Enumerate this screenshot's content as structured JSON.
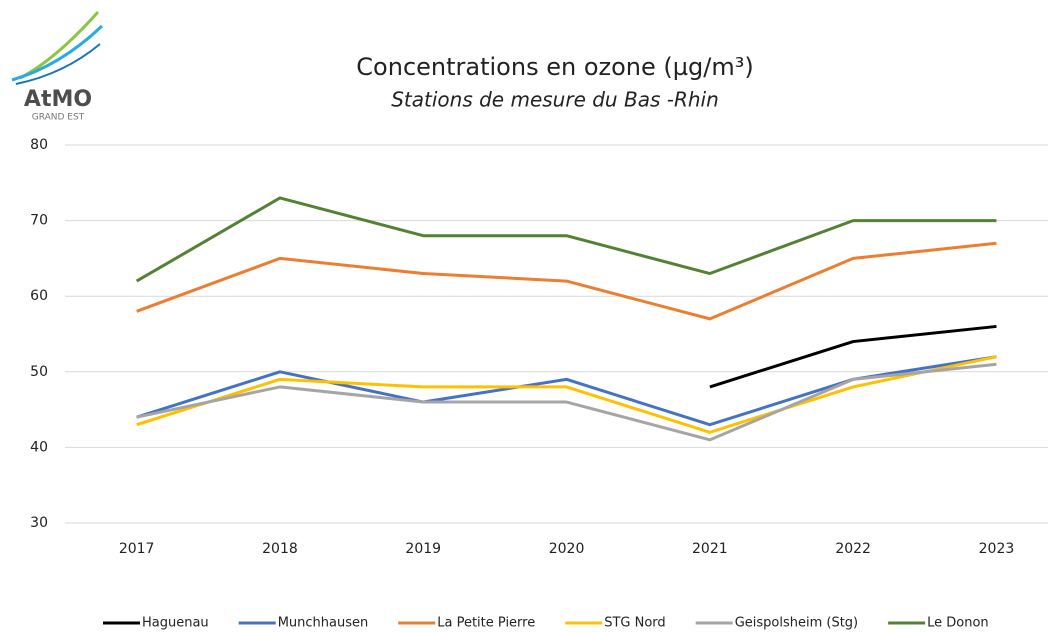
{
  "logo": {
    "name": "AtMO",
    "tagline": "GRAND EST"
  },
  "chart_data": {
    "type": "line",
    "title": "Concentrations en ozone (µg/m³)",
    "subtitle": "Stations de mesure du Bas -Rhin",
    "categories": [
      "2017",
      "2018",
      "2019",
      "2020",
      "2021",
      "2022",
      "2023"
    ],
    "series": [
      {
        "name": "Haguenau",
        "color": "#000000",
        "values": [
          null,
          null,
          null,
          null,
          48,
          54,
          56
        ]
      },
      {
        "name": "Munchhausen",
        "color": "#4472c4",
        "values": [
          44,
          50,
          46,
          49,
          43,
          49,
          52
        ]
      },
      {
        "name": "La Petite Pierre",
        "color": "#ed7d31",
        "values": [
          58,
          65,
          63,
          62,
          57,
          65,
          67
        ]
      },
      {
        "name": "STG Nord",
        "color": "#ffc000",
        "values": [
          43,
          49,
          48,
          48,
          42,
          48,
          52
        ]
      },
      {
        "name": "Geispolsheim (Stg)",
        "color": "#a5a5a5",
        "values": [
          44,
          48,
          46,
          46,
          41,
          49,
          51
        ]
      },
      {
        "name": "Le Donon",
        "color": "#548235",
        "values": [
          62,
          73,
          68,
          68,
          63,
          70,
          70
        ]
      }
    ],
    "ylim": [
      30,
      80
    ],
    "yticks": [
      30,
      40,
      50,
      60,
      70,
      80
    ],
    "grid": true,
    "legend": "bottom"
  }
}
